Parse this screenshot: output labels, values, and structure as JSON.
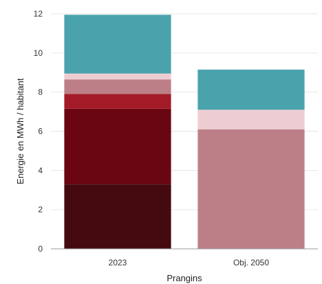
{
  "chart_data": {
    "type": "bar",
    "stacked": true,
    "categories": [
      "2023",
      "Obj. 2050"
    ],
    "xlabel": "Prangins",
    "ylabel": "Energie en MWh / habitant",
    "ylim": [
      0,
      12
    ],
    "yticks": [
      0,
      2,
      4,
      6,
      8,
      10,
      12
    ],
    "grid": true,
    "legend": "none",
    "series": [
      {
        "color": "#450a0f",
        "values": [
          3.3,
          0
        ]
      },
      {
        "color": "#6a0612",
        "values": [
          3.85,
          0
        ]
      },
      {
        "color": "#a31b27",
        "values": [
          0.75,
          0
        ]
      },
      {
        "color": "#bc7f87",
        "values": [
          0.75,
          6.1
        ]
      },
      {
        "color": "#eecdd2",
        "values": [
          0.3,
          1.0
        ]
      },
      {
        "color": "#4aa3ac",
        "values": [
          3.0,
          2.05
        ]
      }
    ]
  }
}
